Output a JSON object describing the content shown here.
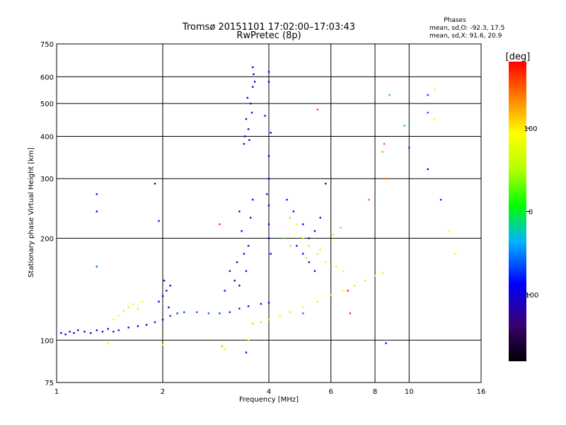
{
  "chart_data": {
    "type": "scatter",
    "title": "Tromsø 20151101 17:02:00–17:03:43",
    "subtitle": "RwPretec (8p)",
    "xlabel": "Frequency [MHz]",
    "ylabel": "Stationary phase Virtual Height [km]",
    "x_scale": "log2",
    "y_scale": "log",
    "xlim": [
      1,
      16
    ],
    "ylim": [
      75,
      750
    ],
    "x_ticks": [
      "1",
      "2",
      "4",
      "6",
      "8",
      "10",
      "16"
    ],
    "x_tick_values": [
      1,
      2,
      4,
      6,
      8,
      10,
      16
    ],
    "y_ticks": [
      "75",
      "100",
      "200",
      "300",
      "400",
      "500",
      "600",
      "750"
    ],
    "y_tick_values": [
      75,
      100,
      200,
      300,
      400,
      500,
      600,
      750
    ],
    "grid": true,
    "stats": {
      "heading": "Phases",
      "line_o": "mean, sd,O: -92.3, 17.5",
      "line_x": "mean, sd,X:  91.6, 20.9"
    },
    "colorbar": {
      "label": "[deg]",
      "range": [
        -180,
        180
      ],
      "ticks": [
        "100",
        "0",
        "-100"
      ],
      "tick_values": [
        100,
        0,
        -100
      ]
    },
    "series": [
      {
        "points": [
          [
            1.03,
            105,
            -95
          ],
          [
            1.06,
            104,
            -100
          ],
          [
            1.09,
            106,
            -90
          ],
          [
            1.12,
            105,
            -92
          ],
          [
            1.15,
            107,
            -98
          ],
          [
            1.2,
            106,
            -88
          ],
          [
            1.25,
            105,
            -94
          ],
          [
            1.3,
            107,
            -90
          ],
          [
            1.35,
            106,
            -85
          ],
          [
            1.4,
            108,
            -92
          ],
          [
            1.45,
            106,
            -80
          ],
          [
            1.5,
            107,
            -88
          ],
          [
            1.6,
            109,
            -90
          ],
          [
            1.7,
            110,
            -85
          ],
          [
            1.8,
            111,
            -88
          ],
          [
            1.9,
            113,
            -80
          ],
          [
            2.0,
            115,
            -85
          ],
          [
            2.1,
            118,
            -78
          ],
          [
            2.2,
            120,
            -70
          ],
          [
            2.3,
            121,
            -65
          ],
          [
            2.5,
            121,
            -60
          ],
          [
            2.7,
            120,
            -62
          ],
          [
            2.9,
            120,
            -68
          ],
          [
            3.1,
            121,
            -75
          ],
          [
            3.3,
            124,
            -80
          ],
          [
            3.5,
            126,
            -85
          ],
          [
            3.8,
            128,
            -90
          ],
          [
            4.0,
            129,
            -92
          ],
          [
            1.6,
            125,
            100
          ],
          [
            1.65,
            128,
            95
          ],
          [
            1.7,
            124,
            105
          ],
          [
            1.75,
            130,
            100
          ],
          [
            1.5,
            118,
            98
          ],
          [
            1.55,
            122,
            102
          ],
          [
            1.45,
            115,
            96
          ],
          [
            3.6,
            112,
            110
          ],
          [
            3.8,
            113,
            108
          ],
          [
            4.0,
            115,
            105
          ],
          [
            4.3,
            118,
            100
          ],
          [
            4.6,
            121,
            104
          ],
          [
            5.0,
            125,
            98
          ],
          [
            5.5,
            130,
            102
          ],
          [
            6.0,
            136,
            100
          ],
          [
            6.5,
            140,
            95
          ],
          [
            7.0,
            145,
            103
          ],
          [
            7.5,
            150,
            100
          ],
          [
            8.0,
            155,
            98
          ],
          [
            8.4,
            158,
            102
          ],
          [
            2.0,
            135,
            -95
          ],
          [
            2.05,
            140,
            -90
          ],
          [
            2.1,
            145,
            -92
          ],
          [
            1.95,
            130,
            -88
          ],
          [
            2.02,
            150,
            -85
          ],
          [
            2.08,
            125,
            -95
          ],
          [
            3.4,
            380,
            -95
          ],
          [
            3.5,
            420,
            -90
          ],
          [
            3.55,
            500,
            -92
          ],
          [
            3.6,
            560,
            -88
          ],
          [
            3.62,
            610,
            -95
          ],
          [
            3.45,
            450,
            -98
          ],
          [
            3.52,
            390,
            -92
          ],
          [
            3.58,
            470,
            -85
          ],
          [
            3.48,
            520,
            -96
          ],
          [
            3.6,
            640,
            -90
          ],
          [
            3.65,
            580,
            -93
          ],
          [
            3.42,
            400,
            -99
          ],
          [
            3.3,
            240,
            -95
          ],
          [
            3.35,
            210,
            -90
          ],
          [
            3.4,
            180,
            -88
          ],
          [
            3.45,
            160,
            -92
          ],
          [
            3.5,
            190,
            -85
          ],
          [
            3.55,
            230,
            -92
          ],
          [
            3.6,
            260,
            -90
          ],
          [
            3.2,
            150,
            -95
          ],
          [
            3.25,
            170,
            -100
          ],
          [
            3.3,
            145,
            -110
          ],
          [
            3.1,
            160,
            -105
          ],
          [
            3.0,
            140,
            -98
          ],
          [
            4.0,
            350,
            -95
          ],
          [
            4.0,
            300,
            -90
          ],
          [
            4.0,
            250,
            -92
          ],
          [
            4.0,
            220,
            -88
          ],
          [
            4.0,
            200,
            -95
          ],
          [
            4.05,
            180,
            -90
          ],
          [
            3.95,
            270,
            -93
          ],
          [
            4.0,
            620,
            -100
          ],
          [
            4.0,
            580,
            -95
          ],
          [
            3.9,
            460,
            -90
          ],
          [
            4.05,
            410,
            -92
          ],
          [
            4.5,
            260,
            -95
          ],
          [
            4.7,
            240,
            -90
          ],
          [
            5.0,
            220,
            -85
          ],
          [
            5.2,
            200,
            -92
          ],
          [
            5.4,
            210,
            -88
          ],
          [
            5.6,
            230,
            -90
          ],
          [
            5.8,
            290,
            -95
          ],
          [
            5.0,
            180,
            -90
          ],
          [
            5.2,
            170,
            -92
          ],
          [
            5.4,
            160,
            -88
          ],
          [
            4.8,
            190,
            -95
          ],
          [
            4.6,
            230,
            110
          ],
          [
            4.8,
            220,
            95
          ],
          [
            5.0,
            200,
            100
          ],
          [
            5.2,
            190,
            105
          ],
          [
            5.5,
            180,
            98
          ],
          [
            5.8,
            170,
            102
          ],
          [
            6.2,
            165,
            100
          ],
          [
            6.5,
            160,
            95
          ],
          [
            4.4,
            200,
            20
          ],
          [
            4.6,
            190,
            40
          ],
          [
            5.1,
            175,
            60
          ],
          [
            5.6,
            185,
            70
          ],
          [
            6.1,
            205,
            50
          ],
          [
            6.4,
            215,
            30
          ],
          [
            5.5,
            480,
            160
          ],
          [
            8.5,
            300,
            140
          ],
          [
            7.7,
            260,
            150
          ],
          [
            6.7,
            140,
            175
          ],
          [
            6.8,
            120,
            165
          ],
          [
            5.0,
            120,
            -55
          ],
          [
            8.6,
            98,
            -100
          ],
          [
            8.8,
            530,
            -30
          ],
          [
            11.3,
            530,
            -70
          ],
          [
            11.3,
            470,
            -60
          ],
          [
            11.8,
            550,
            100
          ],
          [
            11.8,
            450,
            90
          ],
          [
            10.0,
            370,
            -70
          ],
          [
            9.7,
            430,
            -20
          ],
          [
            11.3,
            320,
            -95
          ],
          [
            12.3,
            260,
            -80
          ],
          [
            13.0,
            210,
            80
          ],
          [
            13.5,
            180,
            85
          ],
          [
            8.5,
            380,
            150
          ],
          [
            8.4,
            360,
            130
          ],
          [
            1.3,
            270,
            -95
          ],
          [
            1.3,
            240,
            -90
          ],
          [
            1.3,
            165,
            -55
          ],
          [
            1.95,
            225,
            -100
          ],
          [
            3.45,
            92,
            -110
          ],
          [
            3.0,
            94,
            100
          ],
          [
            2.95,
            96,
            120
          ],
          [
            1.4,
            98,
            100
          ],
          [
            2.0,
            97,
            80
          ],
          [
            3.5,
            100,
            90
          ],
          [
            1.9,
            290,
            -100
          ],
          [
            2.9,
            220,
            160
          ]
        ]
      }
    ]
  }
}
